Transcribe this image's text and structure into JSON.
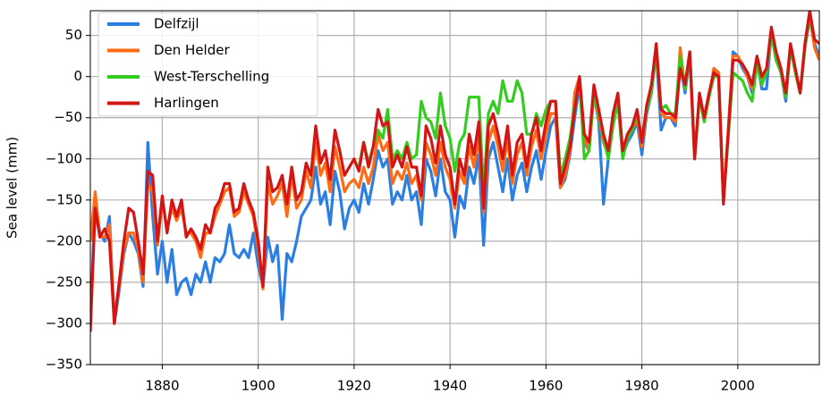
{
  "chart_data": {
    "type": "line",
    "ylabel": "Sea level (mm)",
    "x": [
      1865,
      1866,
      1867,
      1868,
      1869,
      1870,
      1871,
      1872,
      1873,
      1874,
      1875,
      1876,
      1877,
      1878,
      1879,
      1880,
      1881,
      1882,
      1883,
      1884,
      1885,
      1886,
      1887,
      1888,
      1889,
      1890,
      1891,
      1892,
      1893,
      1894,
      1895,
      1896,
      1897,
      1898,
      1899,
      1900,
      1901,
      1902,
      1903,
      1904,
      1905,
      1906,
      1907,
      1908,
      1909,
      1910,
      1911,
      1912,
      1913,
      1914,
      1915,
      1916,
      1917,
      1918,
      1919,
      1920,
      1921,
      1922,
      1923,
      1924,
      1925,
      1926,
      1927,
      1928,
      1929,
      1930,
      1931,
      1932,
      1933,
      1934,
      1935,
      1936,
      1937,
      1938,
      1939,
      1940,
      1941,
      1942,
      1943,
      1944,
      1945,
      1946,
      1947,
      1948,
      1949,
      1950,
      1951,
      1952,
      1953,
      1954,
      1955,
      1956,
      1957,
      1958,
      1959,
      1960,
      1961,
      1962,
      1963,
      1964,
      1965,
      1966,
      1967,
      1968,
      1969,
      1970,
      1971,
      1972,
      1973,
      1974,
      1975,
      1976,
      1977,
      1978,
      1979,
      1980,
      1981,
      1982,
      1983,
      1984,
      1985,
      1986,
      1987,
      1988,
      1989,
      1990,
      1991,
      1992,
      1993,
      1994,
      1995,
      1996,
      1997,
      1998,
      1999,
      2000,
      2001,
      2002,
      2003,
      2004,
      2005,
      2006,
      2007,
      2008,
      2009,
      2010,
      2011,
      2012,
      2013,
      2014,
      2015,
      2016,
      2017
    ],
    "series": [
      {
        "name": "Delfzijl",
        "color": "#2b7fe3",
        "values": [
          -300,
          -150,
          -190,
          -200,
          -170,
          -300,
          -260,
          -215,
          -190,
          -200,
          -215,
          -255,
          -80,
          -170,
          -240,
          -200,
          -250,
          -210,
          -265,
          -250,
          -245,
          -265,
          -240,
          -250,
          -225,
          -250,
          -220,
          -225,
          -215,
          -180,
          -215,
          -220,
          -210,
          -220,
          -190,
          -230,
          -255,
          -195,
          -225,
          -205,
          -295,
          -215,
          -225,
          -200,
          -170,
          -160,
          -150,
          -110,
          -155,
          -140,
          -180,
          -115,
          -140,
          -185,
          -160,
          -150,
          -165,
          -130,
          -155,
          -125,
          -90,
          -110,
          -100,
          -155,
          -140,
          -150,
          -120,
          -150,
          -140,
          -180,
          -100,
          -115,
          -145,
          -100,
          -140,
          -150,
          -195,
          -145,
          -160,
          -110,
          -130,
          -95,
          -205,
          -100,
          -80,
          -110,
          -140,
          -100,
          -150,
          -120,
          -105,
          -140,
          -110,
          -90,
          -125,
          -90,
          -60,
          -50,
          -135,
          -125,
          -95,
          -50,
          -10,
          -80,
          -90,
          -20,
          -55,
          -155,
          -100,
          -50,
          -30,
          -95,
          -80,
          -70,
          -55,
          -95,
          -45,
          -20,
          30,
          -65,
          -50,
          -50,
          -60,
          15,
          -20,
          25,
          -100,
          -25,
          -50,
          -25,
          5,
          0,
          -150,
          -70,
          30,
          25,
          10,
          0,
          -20,
          20,
          -15,
          -15,
          55,
          20,
          5,
          -30,
          35,
          5,
          -20,
          35,
          70,
          40,
          25
        ]
      },
      {
        "name": "Den Helder",
        "color": "#ff6a14",
        "values": [
          -200,
          -140,
          -195,
          -195,
          -180,
          -290,
          -255,
          -210,
          -190,
          -190,
          -210,
          -250,
          -130,
          -140,
          -205,
          -150,
          -185,
          -160,
          -175,
          -160,
          -190,
          -190,
          -200,
          -220,
          -190,
          -190,
          -170,
          -155,
          -140,
          -135,
          -170,
          -165,
          -140,
          -155,
          -170,
          -210,
          -258,
          -130,
          -155,
          -145,
          -130,
          -170,
          -120,
          -160,
          -150,
          -115,
          -135,
          -80,
          -120,
          -105,
          -140,
          -85,
          -110,
          -140,
          -130,
          -125,
          -135,
          -110,
          -130,
          -110,
          -70,
          -90,
          -80,
          -130,
          -115,
          -125,
          -105,
          -130,
          -120,
          -150,
          -80,
          -95,
          -120,
          -80,
          -110,
          -125,
          -160,
          -115,
          -130,
          -85,
          -110,
          -75,
          -165,
          -80,
          -60,
          -85,
          -115,
          -75,
          -130,
          -95,
          -80,
          -120,
          -85,
          -65,
          -100,
          -70,
          -45,
          -45,
          -135,
          -120,
          -90,
          -20,
          0,
          -75,
          -90,
          -20,
          -50,
          -80,
          -95,
          -55,
          -30,
          -95,
          -75,
          -65,
          -50,
          -85,
          -40,
          -15,
          35,
          -45,
          -50,
          -50,
          -55,
          35,
          -15,
          30,
          -100,
          -25,
          -55,
          -25,
          10,
          5,
          -150,
          -65,
          25,
          25,
          15,
          0,
          -15,
          20,
          -5,
          5,
          55,
          25,
          5,
          -25,
          35,
          5,
          -20,
          35,
          75,
          35,
          20
        ]
      },
      {
        "name": "West-Terschelling",
        "color": "#33cc1f",
        "values": [
          null,
          null,
          null,
          null,
          null,
          null,
          null,
          null,
          null,
          null,
          null,
          null,
          null,
          null,
          null,
          null,
          null,
          null,
          null,
          null,
          null,
          null,
          null,
          null,
          null,
          null,
          null,
          null,
          null,
          null,
          null,
          null,
          null,
          null,
          null,
          null,
          null,
          null,
          null,
          null,
          null,
          null,
          null,
          null,
          null,
          null,
          null,
          null,
          null,
          null,
          null,
          null,
          null,
          null,
          null,
          null,
          -110,
          -80,
          -105,
          -85,
          -65,
          -75,
          -40,
          -100,
          -90,
          -100,
          -80,
          -100,
          -95,
          -30,
          -50,
          -55,
          -75,
          -20,
          -60,
          -75,
          -115,
          -80,
          -70,
          -25,
          -25,
          -25,
          -140,
          -45,
          -30,
          -45,
          -5,
          -30,
          -30,
          -5,
          -20,
          -70,
          -70,
          -45,
          -60,
          -40,
          -30,
          -30,
          -120,
          -100,
          -75,
          -35,
          -5,
          -100,
          -90,
          -20,
          -45,
          -75,
          -100,
          -60,
          -30,
          -100,
          -75,
          -65,
          -45,
          -75,
          -40,
          -20,
          35,
          -40,
          -35,
          -45,
          -45,
          25,
          -15,
          30,
          -95,
          -25,
          -55,
          -25,
          0,
          0,
          -150,
          -75,
          5,
          0,
          -5,
          -20,
          -30,
          15,
          -10,
          5,
          50,
          20,
          5,
          -25,
          35,
          5,
          -20,
          35,
          75,
          45,
          40
        ]
      },
      {
        "name": "Harlingen",
        "color": "#d41515",
        "values": [
          -310,
          -160,
          -195,
          -185,
          -200,
          -300,
          -250,
          -200,
          -160,
          -165,
          -200,
          -240,
          -115,
          -120,
          -200,
          -145,
          -190,
          -150,
          -170,
          -150,
          -195,
          -185,
          -195,
          -210,
          -180,
          -190,
          -160,
          -150,
          -130,
          -130,
          -165,
          -160,
          -130,
          -150,
          -165,
          -200,
          -255,
          -110,
          -140,
          -135,
          -120,
          -155,
          -110,
          -150,
          -140,
          -105,
          -120,
          -60,
          -105,
          -90,
          -125,
          -65,
          -90,
          -120,
          -110,
          -100,
          -115,
          -80,
          -110,
          -85,
          -40,
          -60,
          -55,
          -110,
          -95,
          -110,
          -85,
          -110,
          -110,
          -145,
          -60,
          -75,
          -105,
          -60,
          -95,
          -110,
          -155,
          -100,
          -120,
          -70,
          -95,
          -55,
          -160,
          -60,
          -45,
          -70,
          -100,
          -60,
          -120,
          -80,
          -70,
          -110,
          -70,
          -50,
          -90,
          -55,
          -30,
          -30,
          -130,
          -110,
          -85,
          -40,
          0,
          -70,
          -80,
          -10,
          -40,
          -70,
          -90,
          -45,
          -20,
          -90,
          -70,
          -60,
          -40,
          -80,
          -35,
          -10,
          40,
          -40,
          -45,
          -45,
          -50,
          10,
          -10,
          30,
          -100,
          -20,
          -50,
          -20,
          5,
          0,
          -155,
          -70,
          20,
          20,
          15,
          5,
          -10,
          25,
          0,
          10,
          60,
          30,
          10,
          -20,
          40,
          10,
          -20,
          40,
          80,
          45,
          40
        ]
      }
    ],
    "xlim": [
      1865,
      2017
    ],
    "xticks": [
      1880,
      1900,
      1920,
      1940,
      1960,
      1980,
      2000
    ],
    "ylim": [
      -350,
      80
    ],
    "yticks": [
      50,
      0,
      {
        "value": -50,
        "label": "−50"
      },
      {
        "value": -100,
        "label": "−100"
      },
      {
        "value": -150,
        "label": "−150"
      },
      {
        "value": -200,
        "label": "−200"
      },
      {
        "value": -250,
        "label": "−250"
      },
      {
        "value": -300,
        "label": "−300"
      },
      {
        "value": -350,
        "label": "−350"
      }
    ],
    "grid": true,
    "legend": "upper left"
  }
}
